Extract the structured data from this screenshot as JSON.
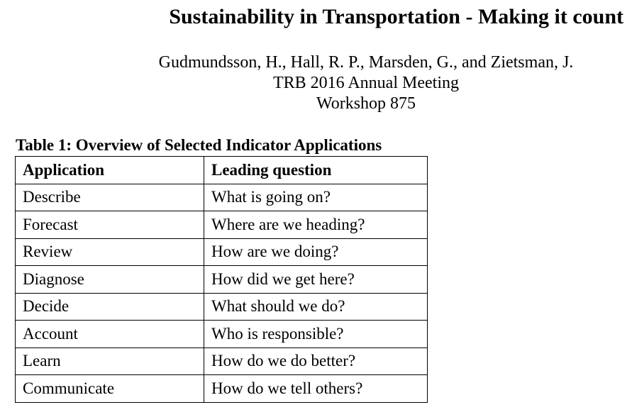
{
  "title": "Sustainability in Transportation - Making it count",
  "authors": "Gudmundsson, H., Hall, R. P., Marsden, G., and Zietsman, J.",
  "meeting": "TRB 2016 Annual Meeting",
  "workshop": "Workshop 875",
  "table": {
    "caption": "Table 1: Overview of Selected Indicator Applications",
    "headers": [
      "Application",
      "Leading question"
    ],
    "rows": [
      [
        "Describe",
        "What is going on?"
      ],
      [
        "Forecast",
        "Where are we heading?"
      ],
      [
        "Review",
        "How are we doing?"
      ],
      [
        "Diagnose",
        "How did we get here?"
      ],
      [
        "Decide",
        "What should we do?"
      ],
      [
        "Account",
        "Who is responsible?"
      ],
      [
        "Learn",
        "How do we do better?"
      ],
      [
        "Communicate",
        "How do we tell others?"
      ]
    ]
  }
}
